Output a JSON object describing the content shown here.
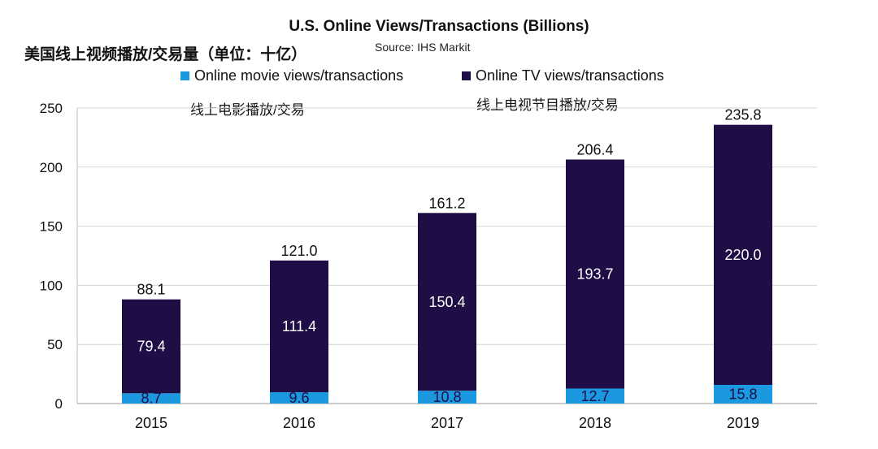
{
  "chart_data": {
    "type": "bar",
    "stacked": true,
    "title": "U.S. Online Views/Transactions (Billions)",
    "subtitle_cn": "美国线上视频播放/交易量（单位：十亿）",
    "source": "Source: IHS Markit",
    "categories": [
      "2015",
      "2016",
      "2017",
      "2018",
      "2019"
    ],
    "series": [
      {
        "name": "Online movie views/transactions",
        "color": "#1a98e0",
        "values": [
          8.7,
          9.6,
          10.8,
          12.7,
          15.8
        ],
        "labels": [
          "8.7",
          "9.6",
          "10.8",
          "12.7",
          "15.8"
        ]
      },
      {
        "name": "Online TV views/transactions",
        "color": "#1f0d45",
        "values": [
          79.4,
          111.4,
          150.4,
          193.7,
          220.0
        ],
        "labels": [
          "79.4",
          "111.4",
          "150.4",
          "193.7",
          "220.0"
        ]
      }
    ],
    "totals": [
      88.1,
      121.0,
      161.2,
      206.4,
      235.8
    ],
    "total_labels": [
      "88.1",
      "121.0",
      "161.2",
      "206.4",
      "235.8"
    ],
    "ylim": [
      0,
      250
    ],
    "yticks": [
      0,
      50,
      100,
      150,
      200,
      250
    ],
    "grid": true,
    "annotations": [
      "线上电影播放/交易",
      "线上电视节目播放/交易"
    ]
  }
}
